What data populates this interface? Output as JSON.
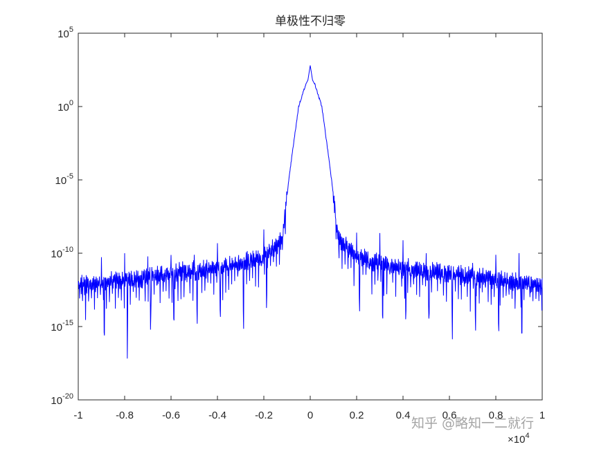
{
  "chart_data": {
    "type": "line",
    "title": "单极性不归零",
    "xlabel": "",
    "ylabel": "",
    "xscale_multiplier": "×10",
    "xscale_exponent": "4",
    "xlim": [
      -1,
      1
    ],
    "ylim_log10": [
      -20,
      5
    ],
    "yscale": "log",
    "grid": false,
    "x_ticks": [
      "-1",
      "-0.8",
      "-0.6",
      "-0.4",
      "-0.2",
      "0",
      "0.2",
      "0.4",
      "0.6",
      "0.8",
      "1"
    ],
    "y_ticks": [
      {
        "base": "10",
        "exp": "-20"
      },
      {
        "base": "10",
        "exp": "-15"
      },
      {
        "base": "10",
        "exp": "-10"
      },
      {
        "base": "10",
        "exp": "-5"
      },
      {
        "base": "10",
        "exp": "0"
      },
      {
        "base": "10",
        "exp": "5"
      }
    ],
    "series": [
      {
        "color": "#0000ff",
        "description_points": {
          "x": [
            -1.0,
            -0.9,
            -0.8,
            -0.7,
            -0.6,
            -0.5,
            -0.4,
            -0.3,
            -0.2,
            -0.12,
            -0.1,
            -0.08,
            -0.05,
            -0.02,
            -0.01,
            0,
            0.01,
            0.02,
            0.05,
            0.08,
            0.1,
            0.12,
            0.2,
            0.3,
            0.4,
            0.5,
            0.6,
            0.7,
            0.8,
            0.9,
            1.0
          ],
          "log10_y": [
            -12.2,
            -12.0,
            -11.8,
            -11.6,
            -11.4,
            -11.2,
            -11.0,
            -10.7,
            -10.2,
            -9.0,
            -6.0,
            -3.5,
            0.0,
            1.5,
            1.8,
            2.8,
            1.8,
            1.5,
            0.0,
            -3.5,
            -6.0,
            -9.0,
            -10.2,
            -10.7,
            -11.0,
            -11.2,
            -11.4,
            -11.6,
            -11.8,
            -12.0,
            -12.2
          ]
        },
        "peak_spikes_x": [
          -0.9,
          -0.8,
          -0.7,
          -0.6,
          -0.5,
          -0.4,
          -0.3,
          -0.2,
          0.2,
          0.3,
          0.4,
          0.5,
          0.6,
          0.7,
          0.8,
          0.9
        ]
      }
    ]
  },
  "watermark": "知乎 @略知一二就行"
}
